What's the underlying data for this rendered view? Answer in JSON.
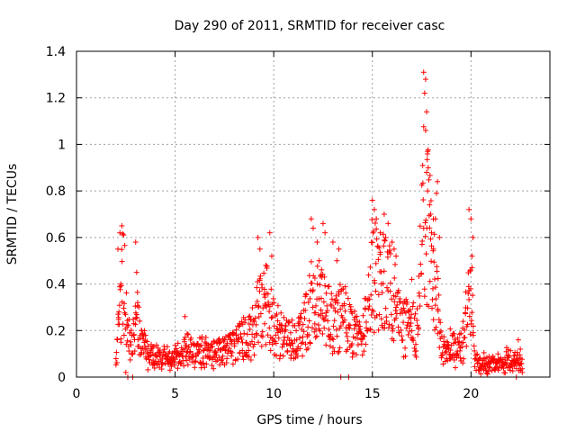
{
  "chart_data": {
    "type": "scatter",
    "title": "Day 290 of 2011, SRMTID for receiver casc",
    "xlabel": "GPS time / hours",
    "ylabel": "SRMTID / TECUs",
    "xlim": [
      0,
      24
    ],
    "ylim": [
      0,
      1.4
    ],
    "x_ticks": [
      0,
      5,
      10,
      15,
      20
    ],
    "x_tick_labels": [
      "0",
      "5",
      "10",
      "15",
      "20"
    ],
    "y_ticks": [
      0,
      0.2,
      0.4,
      0.6,
      0.8,
      1.0,
      1.2,
      1.4
    ],
    "y_tick_labels": [
      "0",
      "0.2",
      "0.4",
      "0.6",
      "0.8",
      "1",
      "1.2",
      "1.4"
    ],
    "grid": true,
    "marker": "+",
    "marker_color": "#ff0000",
    "series": [
      {
        "name": "SRMTID",
        "profile": [
          [
            2.0,
            0.08
          ],
          [
            2.2,
            0.3
          ],
          [
            2.4,
            0.45
          ],
          [
            2.6,
            0.2
          ],
          [
            2.8,
            0.12
          ],
          [
            3.0,
            0.3
          ],
          [
            3.2,
            0.18
          ],
          [
            3.6,
            0.1
          ],
          [
            4.0,
            0.08
          ],
          [
            4.5,
            0.08
          ],
          [
            5.0,
            0.09
          ],
          [
            5.5,
            0.12
          ],
          [
            6.0,
            0.1
          ],
          [
            6.5,
            0.11
          ],
          [
            7.0,
            0.1
          ],
          [
            7.5,
            0.12
          ],
          [
            8.0,
            0.14
          ],
          [
            8.5,
            0.16
          ],
          [
            9.0,
            0.22
          ],
          [
            9.3,
            0.3
          ],
          [
            9.7,
            0.32
          ],
          [
            10.0,
            0.22
          ],
          [
            10.5,
            0.18
          ],
          [
            11.0,
            0.16
          ],
          [
            11.5,
            0.2
          ],
          [
            12.0,
            0.35
          ],
          [
            12.5,
            0.3
          ],
          [
            13.0,
            0.22
          ],
          [
            13.5,
            0.28
          ],
          [
            14.0,
            0.18
          ],
          [
            14.5,
            0.18
          ],
          [
            15.0,
            0.45
          ],
          [
            15.5,
            0.4
          ],
          [
            16.0,
            0.35
          ],
          [
            16.5,
            0.2
          ],
          [
            17.0,
            0.25
          ],
          [
            17.3,
            0.18
          ],
          [
            17.6,
            0.75
          ],
          [
            17.9,
            0.6
          ],
          [
            18.2,
            0.4
          ],
          [
            18.5,
            0.15
          ],
          [
            19.0,
            0.13
          ],
          [
            19.5,
            0.12
          ],
          [
            19.8,
            0.25
          ],
          [
            20.0,
            0.45
          ],
          [
            20.2,
            0.06
          ],
          [
            20.8,
            0.06
          ],
          [
            21.5,
            0.06
          ],
          [
            22.0,
            0.08
          ],
          [
            22.6,
            0.06
          ]
        ],
        "values": [
          [
            2.2,
            0.62
          ],
          [
            2.3,
            0.65
          ],
          [
            2.1,
            0.55
          ],
          [
            2.25,
            0.4
          ],
          [
            2.15,
            0.28
          ],
          [
            2.5,
            0.02
          ],
          [
            2.6,
            0.0
          ],
          [
            2.85,
            0.0
          ],
          [
            3.0,
            0.58
          ],
          [
            3.05,
            0.45
          ],
          [
            3.1,
            0.32
          ],
          [
            3.3,
            0.2
          ],
          [
            3.5,
            0.18
          ],
          [
            5.5,
            0.26
          ],
          [
            9.2,
            0.6
          ],
          [
            9.3,
            0.55
          ],
          [
            9.6,
            0.48
          ],
          [
            9.8,
            0.62
          ],
          [
            9.9,
            0.52
          ],
          [
            11.9,
            0.68
          ],
          [
            12.0,
            0.64
          ],
          [
            12.2,
            0.58
          ],
          [
            12.3,
            0.5
          ],
          [
            12.5,
            0.66
          ],
          [
            12.6,
            0.62
          ],
          [
            12.4,
            0.44
          ],
          [
            13.0,
            0.58
          ],
          [
            13.2,
            0.5
          ],
          [
            13.3,
            0.55
          ],
          [
            13.4,
            0.0
          ],
          [
            13.8,
            0.0
          ],
          [
            15.0,
            0.76
          ],
          [
            15.1,
            0.72
          ],
          [
            15.2,
            0.68
          ],
          [
            15.4,
            0.62
          ],
          [
            15.6,
            0.7
          ],
          [
            15.8,
            0.66
          ],
          [
            16.0,
            0.58
          ],
          [
            16.1,
            0.55
          ],
          [
            16.2,
            0.52
          ],
          [
            17.0,
            0.42
          ],
          [
            17.6,
            1.31
          ],
          [
            17.7,
            1.28
          ],
          [
            17.65,
            1.22
          ],
          [
            17.75,
            1.14
          ],
          [
            17.7,
            1.06
          ],
          [
            17.8,
            0.97
          ],
          [
            17.75,
            0.88
          ],
          [
            17.8,
            0.8
          ],
          [
            17.9,
            0.74
          ],
          [
            17.95,
            0.7
          ],
          [
            18.0,
            0.62
          ],
          [
            18.1,
            0.55
          ],
          [
            18.2,
            0.68
          ],
          [
            18.3,
            0.84
          ],
          [
            18.25,
            0.79
          ],
          [
            18.4,
            0.6
          ],
          [
            19.9,
            0.72
          ],
          [
            20.0,
            0.68
          ],
          [
            20.1,
            0.6
          ],
          [
            20.05,
            0.52
          ],
          [
            22.4,
            0.16
          ],
          [
            22.5,
            0.12
          ],
          [
            22.6,
            0.02
          ],
          [
            22.3,
            0.0
          ]
        ]
      }
    ]
  }
}
